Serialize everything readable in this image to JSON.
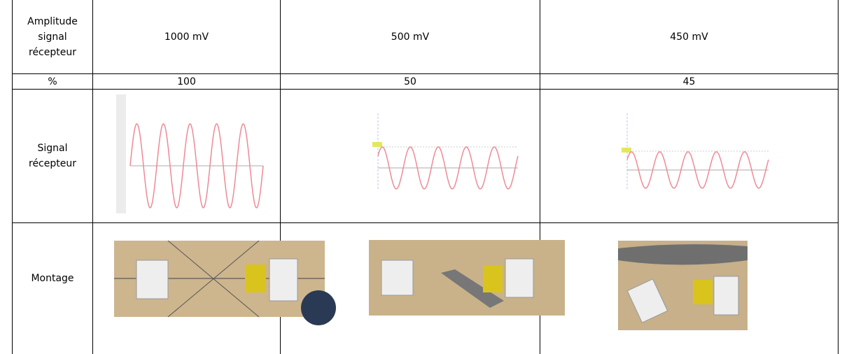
{
  "table": {
    "rows": [
      [
        "Amplitude signal récepteur",
        "1000 mV",
        "500 mV",
        "450 mV"
      ],
      [
        "%",
        "100",
        "50",
        "45"
      ],
      [
        "Signal récepteur"
      ],
      [
        "Montage"
      ]
    ]
  }
}
